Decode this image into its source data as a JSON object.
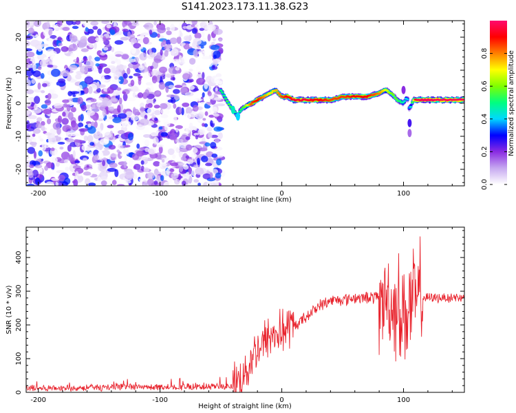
{
  "figure": {
    "title": "S141.2023.173.11.38.G23"
  },
  "chart_data": [
    {
      "type": "heatmap",
      "xlabel": "Height of straight line (km)",
      "ylabel": "Frequency (Hz)",
      "xlim": [
        -210,
        150
      ],
      "ylim": [
        -25,
        25
      ],
      "xticks": [
        -200,
        -100,
        0,
        100
      ],
      "yticks": [
        -20,
        -10,
        0,
        10,
        20
      ],
      "colorbar": {
        "label": "Normalized spectral amplitude",
        "range": [
          0,
          1
        ],
        "ticks": [
          0.0,
          0.2,
          0.4,
          0.6,
          0.8
        ],
        "colormap": "rainbow",
        "stops": [
          "#ffffff",
          "#c6a8f0",
          "#8a2be2",
          "#0000ff",
          "#00d8ff",
          "#00ff7f",
          "#7fff00",
          "#ffff00",
          "#ff8000",
          "#ff0000",
          "#ff0a6e"
        ]
      },
      "noise_region_x": [
        -210,
        -50
      ],
      "ridge": {
        "x": [
          -50,
          -47,
          -44,
          -40,
          -36,
          -34,
          -30,
          -25,
          -20,
          -15,
          -10,
          -5,
          0,
          5,
          10,
          20,
          30,
          40,
          50,
          60,
          70,
          80,
          85,
          90,
          95,
          100,
          103,
          105,
          108,
          110,
          115,
          130,
          150
        ],
        "freq": [
          4,
          2,
          0,
          -2,
          -4,
          -2,
          -1,
          0,
          1,
          2,
          3,
          4,
          2,
          2,
          1,
          1,
          1,
          1,
          2,
          2,
          2,
          3,
          4,
          3,
          1,
          0,
          2,
          -2,
          1,
          1,
          1,
          1,
          1
        ],
        "amp": [
          0.5,
          0.5,
          0.55,
          0.5,
          0.45,
          0.5,
          0.6,
          0.85,
          0.9,
          0.8,
          0.7,
          0.75,
          0.85,
          0.9,
          0.95,
          0.95,
          0.9,
          0.85,
          0.85,
          0.9,
          0.9,
          0.8,
          0.7,
          0.6,
          0.55,
          0.45,
          0.4,
          0.35,
          0.6,
          0.95,
          0.98,
          0.98,
          0.98
        ]
      }
    },
    {
      "type": "line",
      "xlabel": "Height of straight line (km)",
      "ylabel": "SNR (10 * v/v)",
      "xlim": [
        -210,
        150
      ],
      "ylim": [
        0,
        490
      ],
      "xticks": [
        -200,
        -100,
        0,
        100
      ],
      "yticks": [
        0,
        100,
        200,
        300,
        400
      ],
      "color": "#e8212b",
      "trend": {
        "x": [
          -210,
          -40,
          -30,
          -20,
          -10,
          0,
          10,
          20,
          30,
          40,
          60,
          80,
          85,
          90,
          95,
          100,
          105,
          110,
          115,
          150
        ],
        "y": [
          12,
          18,
          60,
          130,
          165,
          180,
          195,
          225,
          255,
          272,
          280,
          282,
          280,
          270,
          250,
          240,
          250,
          270,
          280,
          282
        ]
      }
    }
  ]
}
